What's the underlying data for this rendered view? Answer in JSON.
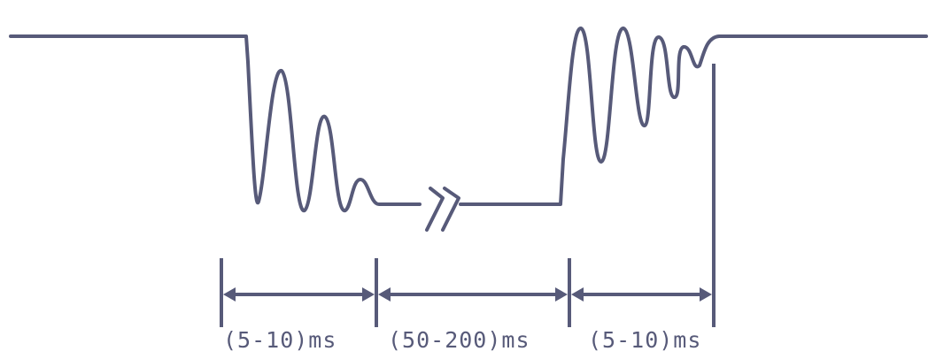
{
  "colors": {
    "line": "#575a79",
    "text": "#575a79",
    "background": "#ffffff"
  },
  "intervals": [
    {
      "label": "(5-10)ms"
    },
    {
      "label": "(50-200)ms"
    },
    {
      "label": "(5-10)ms"
    }
  ]
}
